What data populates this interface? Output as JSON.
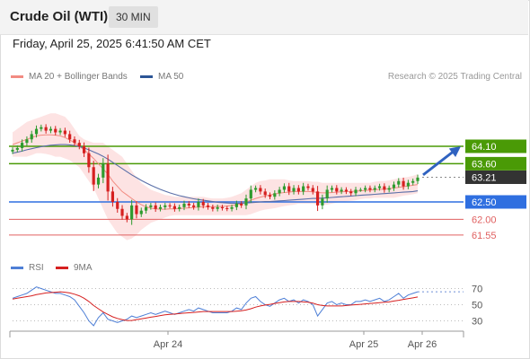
{
  "header": {
    "title": "Crude Oil (WTI)",
    "timeframe": "30 MIN"
  },
  "datetime": "Friday, April 25, 2025 6:41:50 AM CET",
  "legend": {
    "items": [
      {
        "label": "MA 20 + Bollinger Bands",
        "color": "#f28b82"
      },
      {
        "label": "MA 50",
        "color": "#2c5596"
      }
    ],
    "credit": "Research © 2025 Trading Central"
  },
  "rsi_legend": {
    "items": [
      {
        "label": "RSI",
        "color": "#4e7fd6"
      },
      {
        "label": "9MA",
        "color": "#d62020"
      }
    ]
  },
  "colors": {
    "up": "#2e9b2e",
    "down": "#d62020",
    "resistance": "#4a9a06",
    "pivot": "#2f6fe0",
    "support": "#e06060"
  },
  "chart_data": [
    {
      "type": "candlestick",
      "title": "Crude Oil (WTI)",
      "x_labels": [
        "Apr 24",
        "Apr 25",
        "Apr 26"
      ],
      "levels": [
        {
          "value": 64.1,
          "label": "64.10",
          "kind": "resistance"
        },
        {
          "value": 63.6,
          "label": "63.60",
          "kind": "resistance"
        },
        {
          "value": 63.21,
          "label": "63.21",
          "kind": "last"
        },
        {
          "value": 62.5,
          "label": "62.50",
          "kind": "pivot"
        },
        {
          "value": 62.0,
          "label": "62.00",
          "kind": "support"
        },
        {
          "value": 61.55,
          "label": "61.55",
          "kind": "support"
        }
      ],
      "close": [
        64.0,
        64.05,
        64.2,
        64.3,
        64.45,
        64.6,
        64.65,
        64.55,
        64.6,
        64.5,
        64.55,
        64.45,
        64.3,
        64.2,
        64.1,
        63.9,
        63.5,
        63.0,
        63.2,
        63.6,
        62.8,
        62.5,
        62.3,
        62.1,
        62.0,
        62.4,
        62.15,
        62.25,
        62.35,
        62.4,
        62.3,
        62.35,
        62.4,
        62.38,
        62.3,
        62.35,
        62.45,
        62.4,
        62.35,
        62.5,
        62.4,
        62.35,
        62.3,
        62.35,
        62.32,
        62.3,
        62.35,
        62.45,
        62.4,
        62.6,
        62.85,
        62.9,
        62.8,
        62.7,
        62.65,
        62.75,
        62.85,
        62.95,
        62.8,
        62.9,
        62.8,
        62.95,
        62.9,
        62.8,
        62.4,
        62.6,
        62.85,
        62.9,
        62.8,
        62.85,
        62.8,
        62.75,
        62.85,
        62.85,
        62.9,
        62.85,
        62.9,
        62.95,
        62.85,
        62.9,
        63.0,
        63.1,
        62.95,
        63.05,
        63.1,
        63.2
      ],
      "ma20": [
        64.15,
        64.2,
        64.25,
        64.3,
        64.35,
        64.4,
        64.42,
        64.43,
        64.43,
        64.42,
        64.4,
        64.35,
        64.28,
        64.2,
        64.1,
        64.0,
        63.88,
        63.75,
        63.6,
        63.45,
        63.3,
        63.1,
        62.95,
        62.8,
        62.7,
        62.6,
        62.5,
        62.42,
        62.36,
        62.32,
        62.3,
        62.29,
        62.29,
        62.3,
        62.3,
        62.31,
        62.32,
        62.33,
        62.34,
        62.35,
        62.36,
        62.36,
        62.36,
        62.37,
        62.37,
        62.38,
        62.4,
        62.42,
        62.45,
        62.5,
        62.55,
        62.6,
        62.64,
        62.67,
        62.7,
        62.73,
        62.75,
        62.77,
        62.78,
        62.8,
        62.8,
        62.8,
        62.8,
        62.79,
        62.77,
        62.76,
        62.76,
        62.77,
        62.78,
        62.79,
        62.8,
        62.8,
        62.81,
        62.82,
        62.83,
        62.84,
        62.85,
        62.86,
        62.87,
        62.88,
        62.9,
        62.92,
        62.94,
        62.96,
        62.98,
        63.0
      ],
      "ma50": [
        63.9,
        63.93,
        63.96,
        64.0,
        64.03,
        64.06,
        64.09,
        64.11,
        64.13,
        64.14,
        64.15,
        64.15,
        64.14,
        64.12,
        64.09,
        64.05,
        64.0,
        63.94,
        63.88,
        63.81,
        63.73,
        63.64,
        63.55,
        63.46,
        63.37,
        63.28,
        63.2,
        63.12,
        63.05,
        62.98,
        62.92,
        62.86,
        62.81,
        62.76,
        62.72,
        62.68,
        62.65,
        62.62,
        62.59,
        62.57,
        62.55,
        62.53,
        62.51,
        62.49,
        62.48,
        62.47,
        62.46,
        62.46,
        62.46,
        62.47,
        62.48,
        62.49,
        62.5,
        62.51,
        62.51,
        62.52,
        62.53,
        62.54,
        62.55,
        62.56,
        62.57,
        62.58,
        62.59,
        62.6,
        62.6,
        62.61,
        62.62,
        62.63,
        62.64,
        62.65,
        62.66,
        62.67,
        62.68,
        62.69,
        62.7,
        62.71,
        62.72,
        62.73,
        62.74,
        62.75,
        62.76,
        62.77,
        62.78,
        62.79,
        62.8,
        62.82
      ],
      "bb_upper": [
        64.5,
        64.6,
        64.7,
        64.8,
        64.85,
        64.9,
        64.95,
        65.0,
        65.05,
        65.05,
        65.0,
        64.95,
        64.8,
        64.6,
        64.4,
        64.3,
        64.25,
        64.2,
        64.2,
        64.2,
        64.1,
        64.0,
        63.9,
        63.8,
        63.6,
        63.4,
        63.2,
        63.05,
        62.95,
        62.85,
        62.8,
        62.75,
        62.7,
        62.68,
        62.65,
        62.65,
        62.65,
        62.65,
        62.65,
        62.65,
        62.65,
        62.62,
        62.6,
        62.6,
        62.6,
        62.62,
        62.65,
        62.7,
        62.75,
        62.85,
        62.95,
        63.05,
        63.1,
        63.12,
        63.15,
        63.15,
        63.15,
        63.15,
        63.12,
        63.1,
        63.1,
        63.1,
        63.1,
        63.08,
        63.08,
        63.05,
        63.05,
        63.05,
        63.05,
        63.05,
        63.05,
        63.05,
        63.05,
        63.05,
        63.05,
        63.05,
        63.08,
        63.1,
        63.1,
        63.12,
        63.15,
        63.18,
        63.2,
        63.22,
        63.25,
        63.3
      ],
      "bb_lower": [
        63.8,
        63.8,
        63.8,
        63.8,
        63.85,
        63.9,
        63.9,
        63.88,
        63.85,
        63.8,
        63.8,
        63.75,
        63.7,
        63.6,
        63.5,
        63.3,
        63.1,
        62.9,
        62.6,
        62.3,
        62.0,
        61.8,
        61.6,
        61.5,
        61.4,
        61.45,
        61.55,
        61.7,
        61.8,
        61.9,
        61.95,
        62.0,
        62.05,
        62.1,
        62.12,
        62.12,
        62.12,
        62.12,
        62.12,
        62.12,
        62.12,
        62.12,
        62.12,
        62.12,
        62.12,
        62.12,
        62.12,
        62.12,
        62.12,
        62.12,
        62.15,
        62.2,
        62.25,
        62.28,
        62.3,
        62.32,
        62.35,
        62.38,
        62.4,
        62.42,
        62.45,
        62.45,
        62.45,
        62.45,
        62.42,
        62.42,
        62.42,
        62.45,
        62.48,
        62.5,
        62.52,
        62.53,
        62.55,
        62.58,
        62.6,
        62.6,
        62.62,
        62.62,
        62.62,
        62.62,
        62.62,
        62.65,
        62.68,
        62.7,
        62.72,
        62.75
      ],
      "projection": {
        "from": 63.2,
        "to": 64.1
      }
    },
    {
      "type": "line",
      "title": "RSI",
      "y_ticks": [
        70,
        50,
        30
      ],
      "series": [
        {
          "name": "RSI",
          "values": [
            58,
            60,
            62,
            64,
            68,
            72,
            70,
            68,
            66,
            64,
            64,
            62,
            60,
            56,
            48,
            40,
            30,
            24,
            34,
            40,
            32,
            30,
            28,
            30,
            32,
            36,
            34,
            36,
            38,
            40,
            38,
            40,
            42,
            40,
            38,
            40,
            42,
            44,
            42,
            46,
            44,
            42,
            40,
            40,
            40,
            40,
            42,
            46,
            44,
            52,
            58,
            60,
            54,
            50,
            48,
            52,
            56,
            58,
            54,
            56,
            52,
            56,
            54,
            50,
            36,
            44,
            52,
            54,
            50,
            52,
            50,
            50,
            54,
            54,
            56,
            54,
            56,
            58,
            54,
            56,
            60,
            64,
            58,
            62,
            64,
            66
          ]
        },
        {
          "name": "9MA",
          "values": [
            57,
            58,
            59,
            60,
            61,
            62.5,
            63.5,
            64.5,
            65,
            65.5,
            66,
            65.5,
            64.5,
            63,
            61,
            58,
            54,
            49,
            45,
            41,
            38,
            35,
            33,
            31.5,
            30.5,
            30.5,
            31.5,
            32.5,
            33.5,
            34.5,
            35.5,
            36.5,
            37.5,
            38,
            38.5,
            39,
            39.5,
            40,
            40.5,
            41,
            41.5,
            41.5,
            41.5,
            41.5,
            41.5,
            41.5,
            41.5,
            42,
            42.5,
            43.5,
            45,
            47,
            48.5,
            49.5,
            50.5,
            51.5,
            52.5,
            53.5,
            54,
            54,
            54,
            53.5,
            53,
            52,
            50,
            49,
            48.5,
            48.5,
            48.5,
            48.5,
            49,
            49.5,
            50,
            50.5,
            51,
            51.5,
            52,
            52.5,
            53,
            53.5,
            54.5,
            55.5,
            56.5,
            57.5,
            58.5,
            59.5
          ]
        }
      ]
    }
  ]
}
